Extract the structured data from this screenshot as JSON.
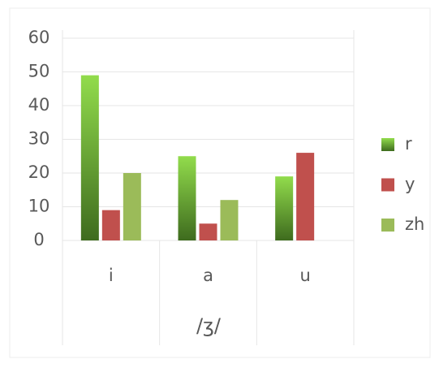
{
  "chart_data": {
    "type": "bar",
    "categories": [
      "i",
      "a",
      "u"
    ],
    "x_label": "/ʒ/",
    "series": [
      {
        "name": "r",
        "color": "#7cc242",
        "values": [
          49,
          25,
          19
        ]
      },
      {
        "name": "y",
        "color": "#c0504d",
        "values": [
          9,
          5,
          26
        ]
      },
      {
        "name": "zh",
        "color": "#9bbb59",
        "values": [
          20,
          12,
          null
        ]
      }
    ],
    "ylim": [
      0,
      60
    ],
    "yticks": [
      0,
      10,
      20,
      30,
      40,
      50,
      60
    ],
    "grid": true,
    "legend": "right"
  }
}
